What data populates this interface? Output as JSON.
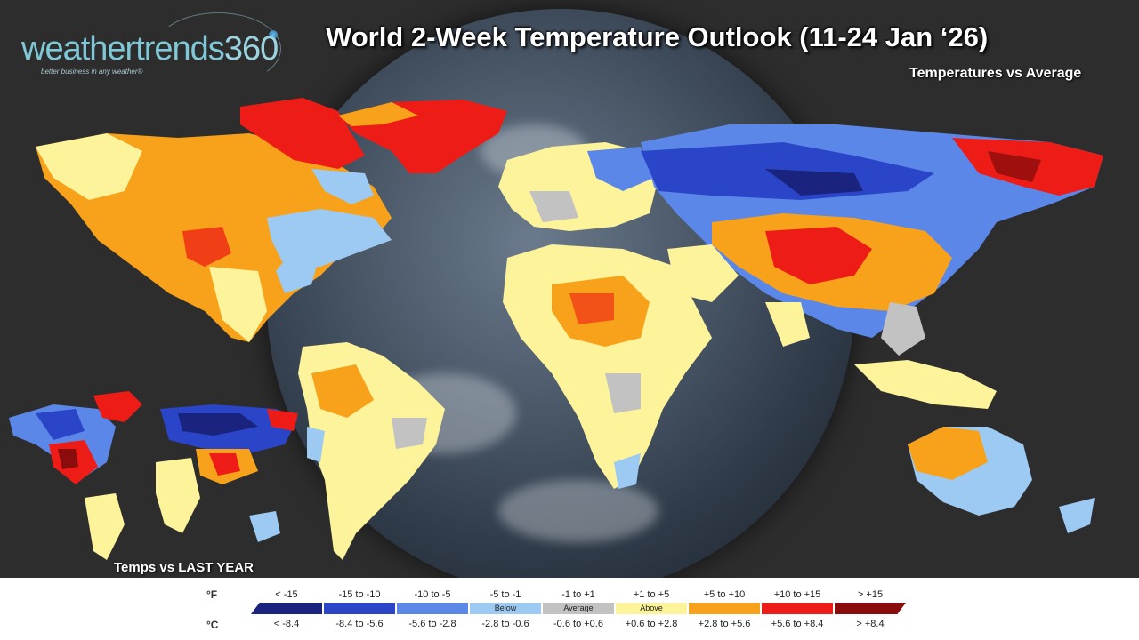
{
  "logo": {
    "brand": "weathertrends",
    "number": "360",
    "tagline": "better business in any weather®"
  },
  "title": "World 2-Week Temperature Outlook (11-24 Jan ‘26)",
  "subtitle": "Temperatures vs Average",
  "inset_label": "Temps vs LAST YEAR",
  "legend": {
    "unit_f": "°F",
    "unit_c": "°C",
    "bins": [
      {
        "f": "< -15",
        "c": "< -8.4",
        "color": "#1a237e",
        "tag": ""
      },
      {
        "f": "-15 to -10",
        "c": "-8.4 to -5.6",
        "color": "#2b45c8",
        "tag": ""
      },
      {
        "f": "-10 to -5",
        "c": "-5.6 to -2.8",
        "color": "#5b88e8",
        "tag": ""
      },
      {
        "f": "-5 to -1",
        "c": "-2.8 to -0.6",
        "color": "#9ccaf2",
        "tag": "Below"
      },
      {
        "f": "-1 to +1",
        "c": "-0.6 to +0.6",
        "color": "#c2c2c2",
        "tag": "Average"
      },
      {
        "f": "+1 to +5",
        "c": "+0.6 to +2.8",
        "color": "#fdf39a",
        "tag": "Above"
      },
      {
        "f": "+5 to +10",
        "c": "+2.8 to +5.6",
        "color": "#f7a21a",
        "tag": ""
      },
      {
        "f": "+10 to +15",
        "c": "+5.6 to +8.4",
        "color": "#ee1c16",
        "tag": ""
      },
      {
        "f": "> +15",
        "c": "> +8.4",
        "color": "#8a0c0c",
        "tag": ""
      }
    ]
  }
}
